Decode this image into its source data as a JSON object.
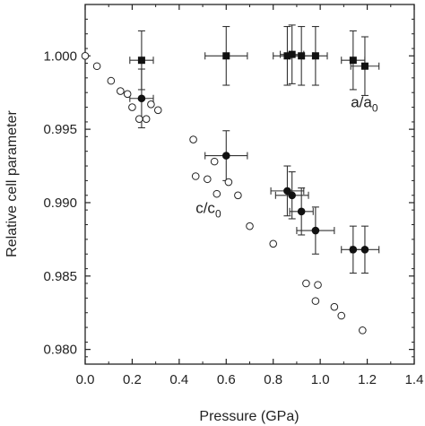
{
  "chart_data": {
    "type": "scatter",
    "xlabel": "Pressure (GPa)",
    "ylabel": "Relative cell parameter",
    "xlim": [
      0.0,
      1.4
    ],
    "ylim": [
      0.979,
      1.0035
    ],
    "xticks": [
      {
        "value": 0.0,
        "label": "0.0"
      },
      {
        "value": 0.2,
        "label": "0.2"
      },
      {
        "value": 0.4,
        "label": "0.4"
      },
      {
        "value": 0.6,
        "label": "0.6"
      },
      {
        "value": 0.8,
        "label": "0.8"
      },
      {
        "value": 1.0,
        "label": "1.0"
      },
      {
        "value": 1.2,
        "label": "1.2"
      },
      {
        "value": 1.4,
        "label": "1.4"
      }
    ],
    "yticks": [
      {
        "value": 0.98,
        "label": "0.980"
      },
      {
        "value": 0.985,
        "label": "0.985"
      },
      {
        "value": 0.99,
        "label": "0.990"
      },
      {
        "value": 0.995,
        "label": "0.995"
      },
      {
        "value": 1.0,
        "label": "1.000"
      }
    ],
    "grid": false,
    "annotations": [
      {
        "main": "a/a",
        "sub": "0",
        "x": 1.13,
        "y": 0.9965
      },
      {
        "main": "c/c",
        "sub": "0",
        "x": 0.47,
        "y": 0.9893
      }
    ],
    "series": [
      {
        "marker": "open-circle",
        "points": [
          [
            0.0,
            1.0
          ],
          [
            0.05,
            0.9993
          ],
          [
            0.11,
            0.9983
          ],
          [
            0.15,
            0.9976
          ],
          [
            0.18,
            0.9974
          ],
          [
            0.2,
            0.9965
          ],
          [
            0.23,
            0.9957
          ],
          [
            0.26,
            0.9957
          ],
          [
            0.28,
            0.9967
          ],
          [
            0.31,
            0.9963
          ],
          [
            0.46,
            0.9943
          ],
          [
            0.47,
            0.9918
          ],
          [
            0.52,
            0.9916
          ],
          [
            0.55,
            0.9928
          ],
          [
            0.56,
            0.9906
          ],
          [
            0.61,
            0.9914
          ],
          [
            0.65,
            0.9905
          ],
          [
            0.7,
            0.9884
          ],
          [
            0.8,
            0.9872
          ],
          [
            0.94,
            0.9845
          ],
          [
            0.99,
            0.9844
          ],
          [
            0.98,
            0.9833
          ],
          [
            1.06,
            0.9829
          ],
          [
            1.09,
            0.9823
          ],
          [
            1.18,
            0.9813
          ]
        ]
      },
      {
        "marker": "filled-square",
        "points": [
          {
            "x": 0.24,
            "y": 0.9997,
            "xerr": 0.05,
            "yerr": 0.002
          },
          {
            "x": 0.6,
            "y": 1.0,
            "xerr": 0.09,
            "yerr": 0.002
          },
          {
            "x": 0.86,
            "y": 1.0,
            "xerr": 0.06,
            "yerr": 0.002
          },
          {
            "x": 0.88,
            "y": 1.0001,
            "xerr": 0.05,
            "yerr": 0.002
          },
          {
            "x": 0.92,
            "y": 1.0,
            "xerr": 0.05,
            "yerr": 0.002
          },
          {
            "x": 0.98,
            "y": 1.0,
            "xerr": 0.05,
            "yerr": 0.002
          },
          {
            "x": 1.14,
            "y": 0.9997,
            "xerr": 0.05,
            "yerr": 0.002
          },
          {
            "x": 1.19,
            "y": 0.9993,
            "xerr": 0.06,
            "yerr": 0.002
          }
        ]
      },
      {
        "marker": "filled-circle",
        "points": [
          {
            "x": 0.24,
            "y": 0.9971,
            "xerr": 0.05,
            "yerr": 0.002
          },
          {
            "x": 0.6,
            "y": 0.9932,
            "xerr": 0.09,
            "yerr": 0.0017
          },
          {
            "x": 0.86,
            "y": 0.9908,
            "xerr": 0.07,
            "yerr": 0.0017
          },
          {
            "x": 0.88,
            "y": 0.9905,
            "xerr": 0.07,
            "yerr": 0.0016
          },
          {
            "x": 0.92,
            "y": 0.9894,
            "xerr": 0.05,
            "yerr": 0.0016
          },
          {
            "x": 0.98,
            "y": 0.9881,
            "xerr": 0.08,
            "yerr": 0.0016
          },
          {
            "x": 1.14,
            "y": 0.9868,
            "xerr": 0.05,
            "yerr": 0.0016
          },
          {
            "x": 1.19,
            "y": 0.9868,
            "xerr": 0.06,
            "yerr": 0.0016
          }
        ]
      }
    ]
  }
}
